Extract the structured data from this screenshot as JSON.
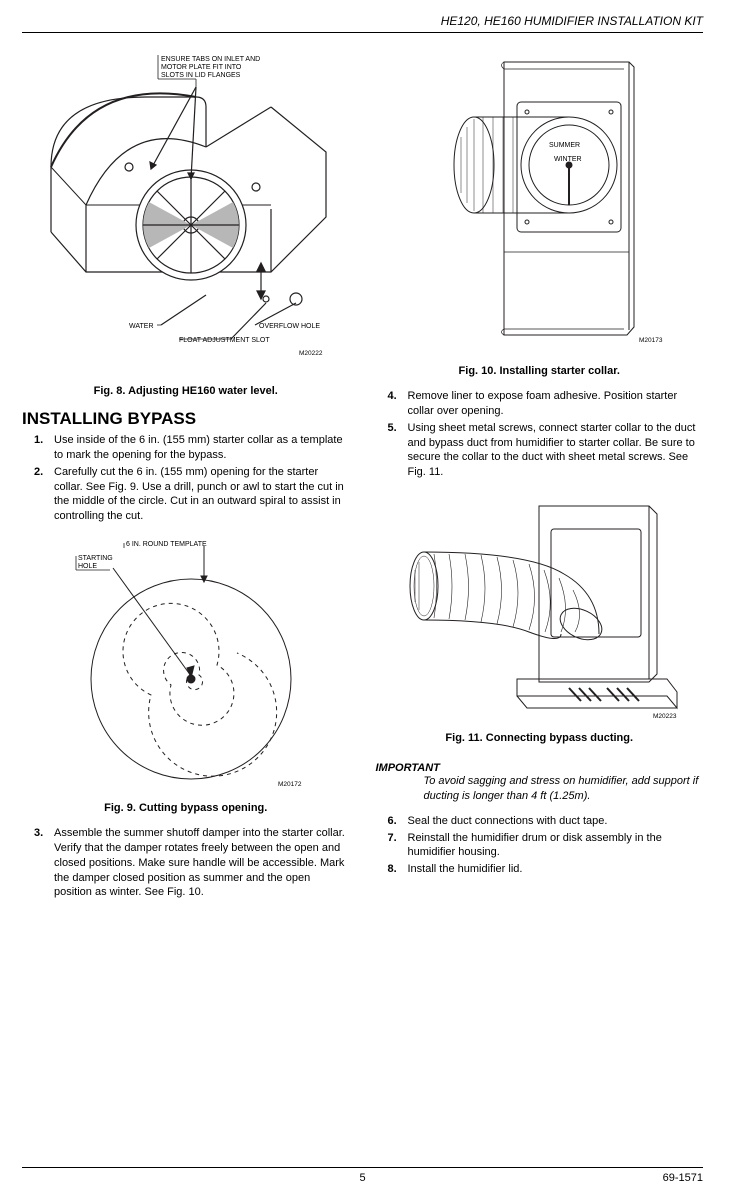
{
  "header": {
    "title": "HE120, HE160 HUMIDIFIER INSTALLATION KIT"
  },
  "fig8": {
    "caption": "Fig. 8. Adjusting HE160 water level.",
    "code": "M20222",
    "annot_top": "ENSURE TABS ON INLET AND\nMOTOR PLATE FIT INTO\nSLOTS IN LID FLANGES",
    "annot_water": "WATER",
    "annot_overflow": "OVERFLOW HOLE",
    "annot_float": "FLOAT ADJUSTMENT SLOT"
  },
  "fig9": {
    "caption": "Fig. 9. Cutting bypass opening.",
    "code": "M20172",
    "annot_template": "6 IN. ROUND TEMPLATE",
    "annot_start1": "STARTING",
    "annot_start2": "HOLE"
  },
  "fig10": {
    "caption": "Fig. 10. Installing starter collar.",
    "code": "M20173",
    "annot_summer": "SUMMER",
    "annot_winter": "WINTER"
  },
  "fig11": {
    "caption": "Fig. 11. Connecting bypass ducting.",
    "code": "M20223"
  },
  "section_title": "INSTALLING BYPASS",
  "left_steps": [
    {
      "n": "1.",
      "t": "Use inside of  the 6 in. (155 mm) starter collar as a template to mark the opening for the bypass."
    },
    {
      "n": "2.",
      "t": "Carefully cut the 6 in. (155 mm) opening for the starter collar. See Fig. 9. Use a drill, punch or awl to start the cut in the middle of the circle. Cut in an outward spiral to assist in controlling the cut."
    }
  ],
  "left_steps_2": [
    {
      "n": "3.",
      "t": "Assemble the summer shutoff damper into the starter collar. Verify that the damper rotates freely between the open and closed positions. Make sure handle will be accessible. Mark the damper closed position as summer and the open position as winter. See Fig. 10."
    }
  ],
  "right_steps_a": [
    {
      "n": "4.",
      "t": "Remove liner to expose foam adhesive. Position starter collar over opening."
    },
    {
      "n": "5.",
      "t": "Using sheet metal screws, connect starter collar to the duct and bypass duct from humidifier to starter collar. Be sure to secure the collar to the duct with sheet metal screws. See Fig. 11."
    }
  ],
  "important": {
    "head": "IMPORTANT",
    "body": "To avoid sagging and stress on humidifier, add support if ducting is longer than 4 ft (1.25m)."
  },
  "right_steps_b": [
    {
      "n": "6.",
      "t": "Seal the duct connections with duct tape."
    },
    {
      "n": "7.",
      "t": "Reinstall the humidifier drum or disk assembly in the humidifier housing."
    },
    {
      "n": "8.",
      "t": "Install the humidifier lid."
    }
  ],
  "footer": {
    "page": "5",
    "doc": "69-1571"
  },
  "colors": {
    "line": "#231f20",
    "shade": "#b7b7b7"
  }
}
